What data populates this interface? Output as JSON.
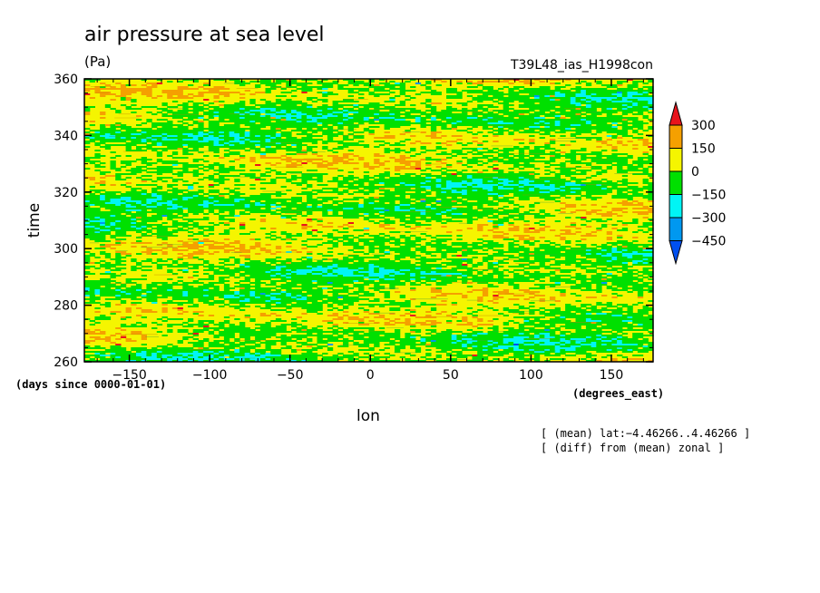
{
  "chart_data": {
    "type": "heatmap",
    "title": "air pressure at sea level",
    "units": "(Pa)",
    "run_label": "T39L48_ias_H1998con",
    "xlabel": "lon",
    "x_units": "(degrees_east)",
    "ylabel": "time",
    "y_units": "(days since 0000-01-01)",
    "xlim": [
      -178,
      176
    ],
    "ylim": [
      260,
      360
    ],
    "x_ticks": [
      -150,
      -100,
      -50,
      0,
      50,
      100,
      150
    ],
    "x_tick_labels": [
      "−150",
      "−100",
      "−50",
      "0",
      "50",
      "100",
      "150"
    ],
    "y_ticks": [
      260,
      280,
      300,
      320,
      340,
      360
    ],
    "y_tick_labels": [
      "260",
      "280",
      "300",
      "320",
      "340",
      "360"
    ],
    "colorbar": {
      "levels": [
        300,
        150,
        0,
        -150,
        -300,
        -450
      ],
      "labels": [
        "300",
        "150",
        "0",
        "−150",
        "−300",
        "−450"
      ],
      "colors": [
        "#e8141c",
        "#f5a000",
        "#f5f500",
        "#00e000",
        "#00f5f5",
        "#0098f0",
        "#0050f0"
      ]
    },
    "notes": [
      "[ (mean) lat:−4.46266..4.46266 ]",
      "[ (diff) from (mean) zonal ]"
    ],
    "dominant_range": [
      -150,
      150
    ]
  }
}
